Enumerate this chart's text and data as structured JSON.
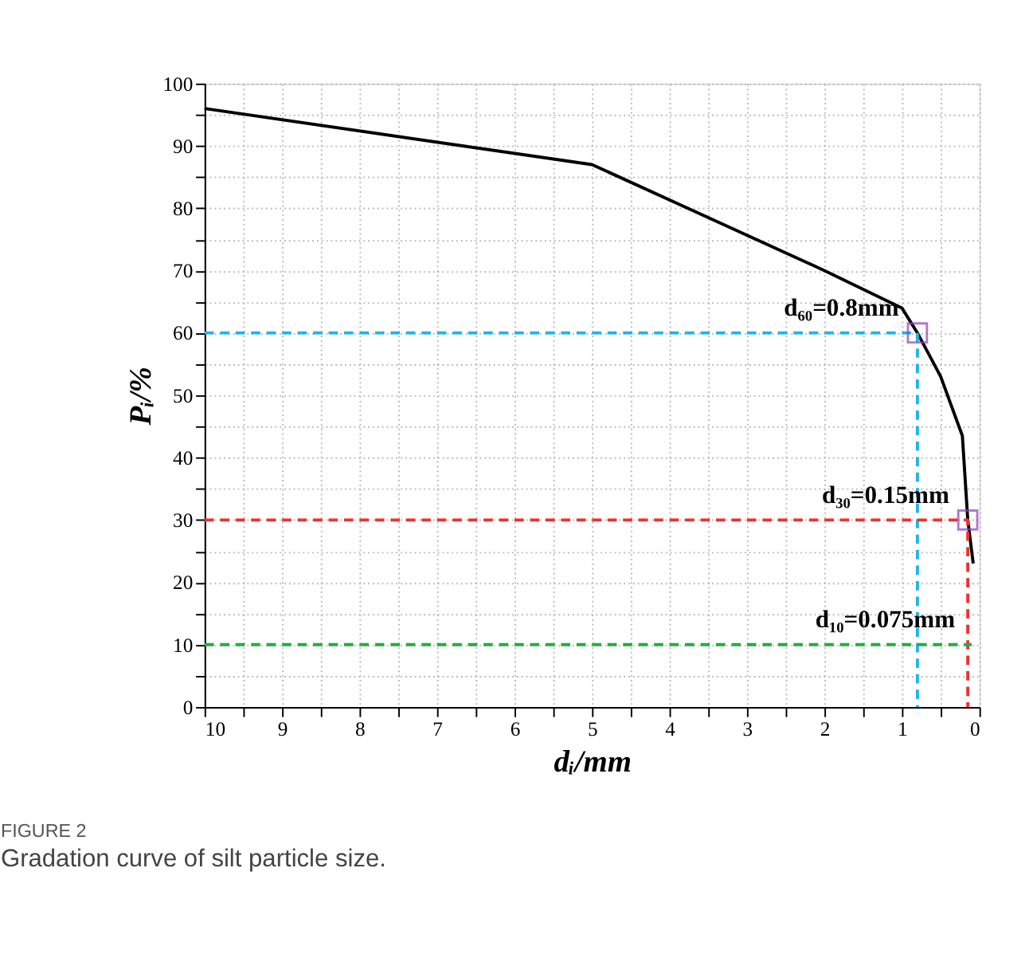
{
  "chart_data": {
    "type": "line",
    "title": "FIGURE 2",
    "subtitle": "Gradation curve of silt particle size.",
    "xlabel": "dᵢ/mm",
    "ylabel": "Pᵢ/%",
    "xlim": [
      10,
      0
    ],
    "ylim": [
      0,
      100
    ],
    "xticks": [
      10,
      {
        "value": 9.5,
        "label": null
      },
      9,
      {
        "value": 8.5,
        "label": null
      },
      8,
      {
        "value": 7.5,
        "label": null
      },
      7,
      {
        "value": 6.5,
        "label": null
      },
      6,
      {
        "value": 5.5,
        "label": null
      },
      5,
      {
        "value": 4.5,
        "label": null
      },
      4,
      {
        "value": 3.5,
        "label": null
      },
      3,
      {
        "value": 2.5,
        "label": null
      },
      2,
      {
        "value": 1.5,
        "label": null
      },
      1,
      {
        "value": 0.5,
        "label": null
      },
      0
    ],
    "yticks": [
      0,
      {
        "value": 5,
        "label": null
      },
      10,
      {
        "value": 15,
        "label": null
      },
      20,
      {
        "value": 25,
        "label": null
      },
      30,
      {
        "value": 35,
        "label": null
      },
      40,
      {
        "value": 45,
        "label": null
      },
      50,
      {
        "value": 55,
        "label": null
      },
      60,
      {
        "value": 65,
        "label": null
      },
      70,
      {
        "value": 75,
        "label": null
      },
      80,
      {
        "value": 85,
        "label": null
      },
      90,
      {
        "value": 95,
        "label": null
      },
      100
    ],
    "grid": true,
    "series": [
      {
        "color": "#000000",
        "line_style": "solid",
        "marker": "none",
        "x": [
          10,
          5,
          2,
          1,
          0.8,
          0.5,
          0.22,
          0.15,
          0.08
        ],
        "values": [
          96,
          87,
          70,
          64,
          60,
          53,
          43.5,
          30,
          23
        ]
      },
      {
        "color": "#1fb5e8",
        "line_style": "dashed",
        "marker": "none",
        "x": [
          10,
          0.8,
          0.8
        ],
        "values": [
          60,
          60,
          0
        ]
      },
      {
        "color": "#f03030",
        "line_style": "dashed",
        "marker": "none",
        "x": [
          10,
          0.15,
          0.15
        ],
        "values": [
          30,
          30,
          0
        ]
      },
      {
        "color": "#20b040",
        "line_style": "dashed",
        "marker": "none",
        "x": [
          10,
          0.1
        ],
        "values": [
          10,
          10
        ]
      },
      {
        "type": "scatter",
        "color": "#9040c0",
        "marker": "square",
        "x": [
          0.8,
          0.15
        ],
        "values": [
          60,
          30
        ]
      }
    ],
    "annotations": [
      {
        "text": "d₆₀=0.8mm",
        "x": 0.8,
        "y": 60
      },
      {
        "text": "d₃₀=0.15mm",
        "x": 0.15,
        "y": 30
      },
      {
        "text": "d₁₀=0.075mm",
        "x": 0.075,
        "y": 10
      }
    ]
  }
}
